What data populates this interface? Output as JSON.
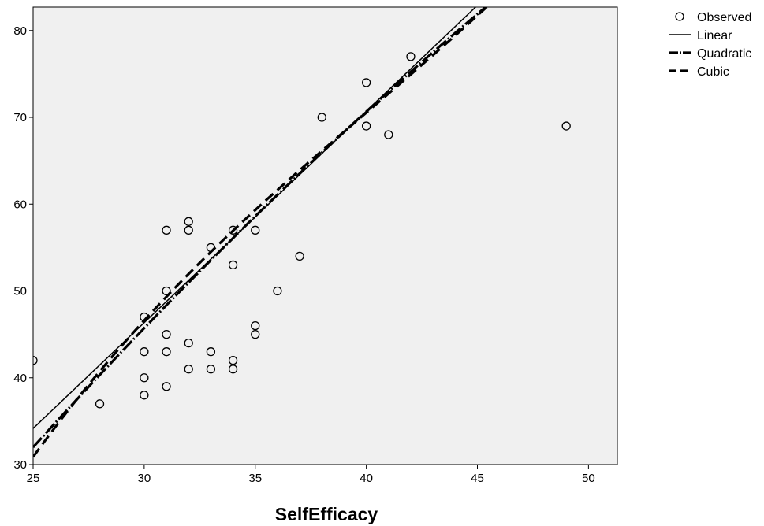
{
  "chart_data": {
    "type": "scatter",
    "title": "",
    "xlabel": "SelfEfficacy",
    "ylabel": "",
    "xlim": [
      25,
      51.3
    ],
    "ylim": [
      30,
      82.7
    ],
    "x_ticks": [
      25,
      30,
      35,
      40,
      45,
      50
    ],
    "y_ticks": [
      30,
      40,
      50,
      60,
      70,
      80
    ],
    "grid": false,
    "legend_position": "top-right",
    "plot_background": "#f0f0f0",
    "series": [
      {
        "name": "Observed",
        "kind": "points",
        "points": [
          [
            25,
            42
          ],
          [
            28,
            37
          ],
          [
            30,
            47
          ],
          [
            30,
            43
          ],
          [
            30,
            40
          ],
          [
            30,
            38
          ],
          [
            31,
            57
          ],
          [
            31,
            50
          ],
          [
            31,
            45
          ],
          [
            31,
            43
          ],
          [
            31,
            39
          ],
          [
            32,
            58
          ],
          [
            32,
            57
          ],
          [
            32,
            44
          ],
          [
            32,
            41
          ],
          [
            33,
            55
          ],
          [
            33,
            43
          ],
          [
            33,
            41
          ],
          [
            34,
            57
          ],
          [
            34,
            53
          ],
          [
            34,
            42
          ],
          [
            34,
            41
          ],
          [
            35,
            57
          ],
          [
            35,
            46
          ],
          [
            35,
            45
          ],
          [
            36,
            50
          ],
          [
            37,
            54
          ],
          [
            38,
            70
          ],
          [
            40,
            74
          ],
          [
            40,
            69
          ],
          [
            41,
            68
          ],
          [
            42,
            77
          ],
          [
            49,
            69
          ]
        ]
      },
      {
        "name": "Linear",
        "kind": "curve",
        "coefficients": [
          -26.75,
          2.4366
        ]
      },
      {
        "name": "Quadratic",
        "kind": "curve",
        "coefficients": [
          -49.0,
          3.654,
          -0.01656
        ]
      },
      {
        "name": "Cubic",
        "kind": "curve",
        "coefficients": [
          -144.04,
          11.683,
          -0.2366,
          0.001966
        ]
      }
    ]
  }
}
